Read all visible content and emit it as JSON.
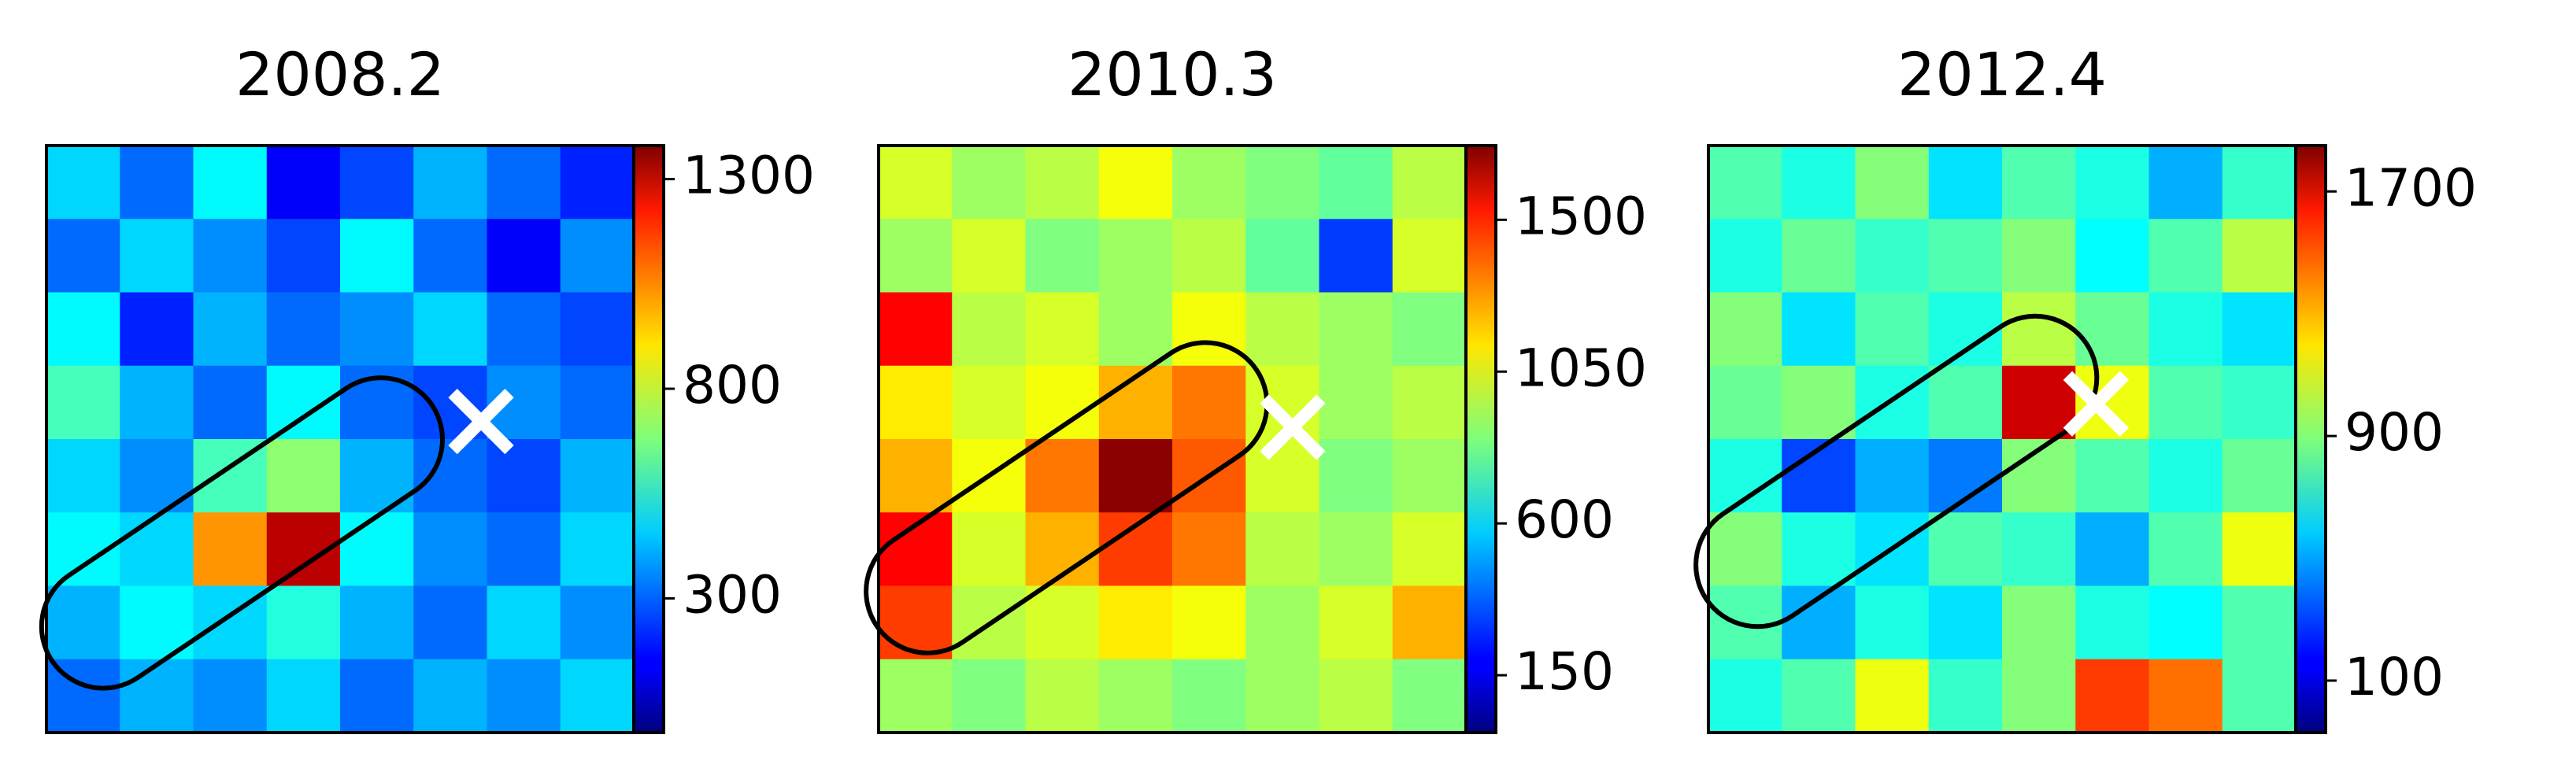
{
  "chart_data": [
    {
      "type": "heatmap",
      "title": "2008.2",
      "colormap": "jet",
      "ylim": [
        -20,
        1380
      ],
      "yticks": [
        300,
        800,
        1300
      ],
      "values": [
        [
          450,
          300,
          500,
          150,
          250,
          400,
          300,
          200
        ],
        [
          300,
          450,
          350,
          250,
          500,
          300,
          150,
          350
        ],
        [
          500,
          200,
          400,
          300,
          350,
          450,
          300,
          250
        ],
        [
          600,
          400,
          300,
          500,
          300,
          250,
          350,
          300
        ],
        [
          450,
          350,
          600,
          700,
          400,
          300,
          250,
          400
        ],
        [
          500,
          450,
          1000,
          1300,
          500,
          350,
          300,
          450
        ],
        [
          400,
          500,
          450,
          550,
          400,
          300,
          450,
          350
        ],
        [
          300,
          400,
          350,
          450,
          300,
          400,
          350,
          450
        ]
      ]
    },
    {
      "type": "heatmap",
      "title": "2010.3",
      "colormap": "jet",
      "ylim": [
        -20,
        1720
      ],
      "yticks": [
        150,
        600,
        1050,
        1500
      ],
      "values": [
        [
          1000,
          900,
          950,
          1050,
          900,
          850,
          800,
          950
        ],
        [
          900,
          1000,
          850,
          900,
          950,
          800,
          300,
          1000
        ],
        [
          1500,
          950,
          1000,
          900,
          1050,
          950,
          900,
          850
        ],
        [
          1100,
          1000,
          1050,
          1200,
          1300,
          1000,
          900,
          950
        ],
        [
          1200,
          1050,
          1300,
          1700,
          1350,
          1000,
          850,
          900
        ],
        [
          1500,
          1000,
          1200,
          1400,
          1300,
          950,
          900,
          1000
        ],
        [
          1400,
          950,
          1000,
          1100,
          1050,
          900,
          1000,
          1200
        ],
        [
          900,
          850,
          950,
          900,
          850,
          900,
          950,
          850
        ]
      ]
    },
    {
      "type": "heatmap",
      "title": "2012.4",
      "colormap": "jet",
      "ylim": [
        -70,
        1850
      ],
      "yticks": [
        100,
        900,
        1700
      ],
      "values": [
        [
          800,
          700,
          900,
          600,
          800,
          700,
          500,
          750
        ],
        [
          700,
          850,
          750,
          800,
          900,
          650,
          800,
          1000
        ],
        [
          900,
          600,
          800,
          700,
          1000,
          850,
          700,
          600
        ],
        [
          850,
          900,
          700,
          800,
          1700,
          1100,
          800,
          750
        ],
        [
          700,
          300,
          500,
          400,
          900,
          800,
          700,
          850
        ],
        [
          900,
          700,
          600,
          800,
          750,
          500,
          800,
          1100
        ],
        [
          800,
          500,
          700,
          600,
          900,
          700,
          650,
          800
        ],
        [
          700,
          800,
          1100,
          750,
          900,
          1500,
          1400,
          800
        ]
      ]
    }
  ]
}
